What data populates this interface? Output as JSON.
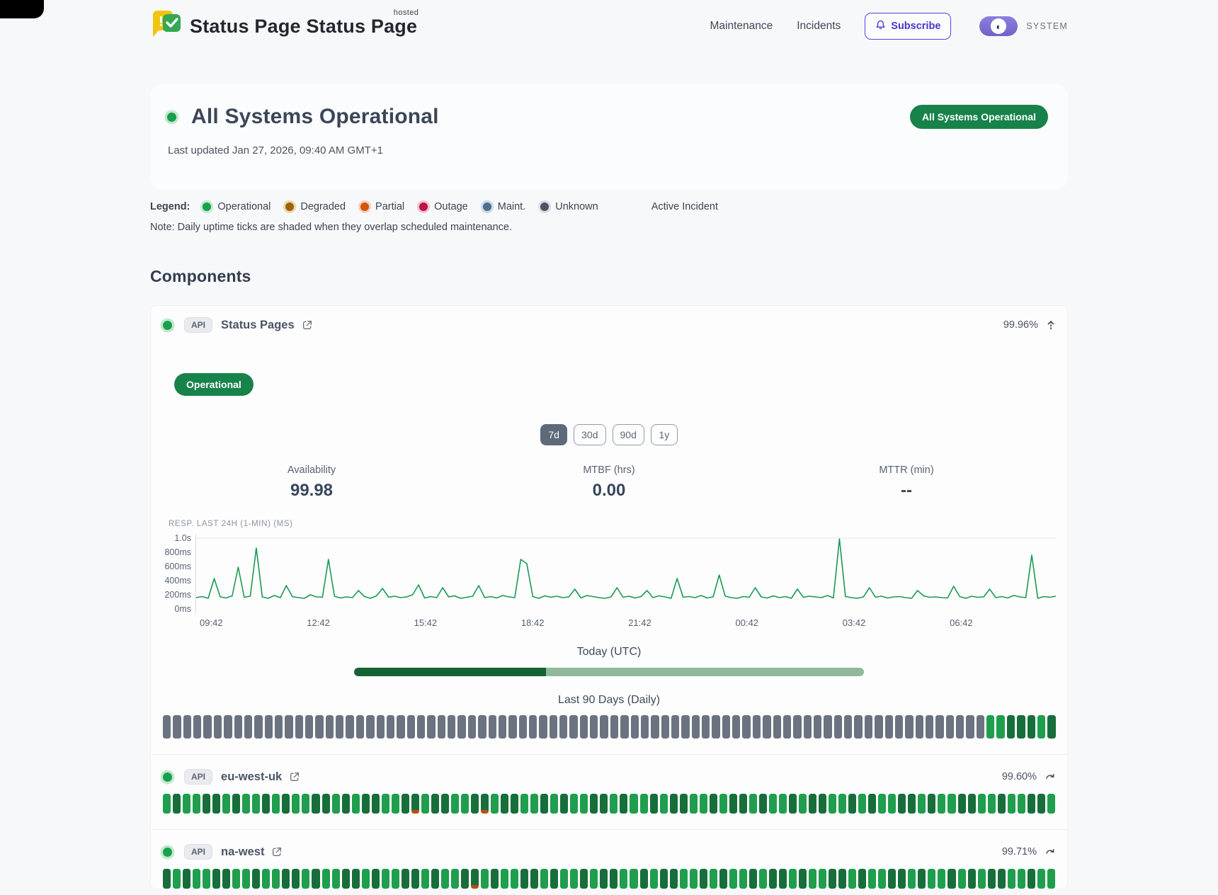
{
  "header": {
    "brand": {
      "name": "Status Page",
      "superscript": "hosted"
    },
    "nav": [
      {
        "label": "Maintenance"
      },
      {
        "label": "Incidents"
      }
    ],
    "subscribe_label": "Subscribe",
    "theme_label": "SYSTEM"
  },
  "hero": {
    "title": "All Systems Operational",
    "last_updated": "Last updated Jan 27, 2026, 09:40 AM GMT+1",
    "badge": "All Systems Operational"
  },
  "legend": {
    "label": "Legend:",
    "items": [
      {
        "label": "Operational",
        "color": "#18a04d",
        "ring": "#c3e7cf"
      },
      {
        "label": "Degraded",
        "color": "#a16207",
        "ring": "#ead9ab"
      },
      {
        "label": "Partial",
        "color": "#d35708",
        "ring": "#f3d0c4"
      },
      {
        "label": "Outage",
        "color": "#c01048",
        "ring": "#f2c3d2"
      },
      {
        "label": "Maint.",
        "color": "#4e6e8e",
        "ring": "#c9d9e8"
      },
      {
        "label": "Unknown",
        "color": "#4b5563",
        "ring": "#d9dce1"
      }
    ],
    "active_incident_label": "Active Incident",
    "note": "Note: Daily uptime ticks are shaded when they overlap scheduled maintenance."
  },
  "components_section": {
    "heading": "Components",
    "expanded": {
      "tag": "API",
      "name": "Status Pages",
      "uptime": "99.96%",
      "status_badge": "Operational",
      "ranges": [
        "7d",
        "30d",
        "90d",
        "1y"
      ],
      "selected_range": "7d",
      "stats": [
        {
          "label": "Availability",
          "value": "99.98"
        },
        {
          "label": "MTBF (hrs)",
          "value": "0.00"
        },
        {
          "label": "MTTR (min)",
          "value": "--"
        }
      ],
      "today_label": "Today (UTC)",
      "today_progress_pct": 37.6,
      "history_label": "Last 90 Days (Daily)",
      "history_ticks": "gggggggggggggggggggggggggggggggggggggggggggggggggggggggggggggggggggggggggggggggggGGDDDGD"
    },
    "collapsed": [
      {
        "tag": "API",
        "name": "eu-west-uk",
        "uptime": "99.60%",
        "ticks": "GDGGDDGDGGDGDGGDDGDGDDGGDpGDDGGDpGDDGGDGDGGDDGDGGDGDDGGDGDDGDGGDGDDGGDGDGGDDGDGGDDGGDGGDDG"
      },
      {
        "tag": "API",
        "name": "na-west",
        "uptime": "99.71%",
        "ticks": "DGDGGDDGGDGGDDGDGGDDGDGGDDGDGGDpGDGGDDGDGGDGDDGGDGDDGGDGDGGDGDDGDGGDDGDGGDDGDGGDGDGDDGGDGG"
      }
    ],
    "tick_colors": {
      "g": "#6b7280",
      "G": "#1f9e4d",
      "D": "#176e3b",
      "partial_bottom": "#b9500e"
    }
  },
  "chart_data": {
    "type": "line",
    "title": "RESP. LAST 24H (1-MIN) (MS)",
    "x_tick_labels": [
      "09:42",
      "12:42",
      "15:42",
      "18:42",
      "21:42",
      "00:42",
      "03:42",
      "06:42"
    ],
    "y_tick_labels": [
      "1.0s",
      "800ms",
      "600ms",
      "400ms",
      "200ms",
      "0ms"
    ],
    "ylim": [
      0,
      1000
    ],
    "grid": "minimal",
    "line_color": "#1b9a52",
    "values": [
      160,
      175,
      150,
      430,
      170,
      155,
      185,
      590,
      165,
      180,
      860,
      170,
      150,
      190,
      160,
      330,
      175,
      160,
      150,
      200,
      170,
      165,
      700,
      180,
      155,
      170,
      160,
      260,
      175,
      150,
      185,
      290,
      165,
      180,
      160,
      170,
      200,
      340,
      155,
      175,
      160,
      300,
      170,
      185,
      150,
      165,
      180,
      330,
      160,
      175,
      155,
      190,
      170,
      160,
      700,
      640,
      175,
      150,
      185,
      165,
      180,
      160,
      170,
      280,
      155,
      190,
      175,
      160,
      150,
      170,
      300,
      165,
      180,
      155,
      175,
      260,
      160,
      185,
      170,
      150,
      430,
      165,
      175,
      160,
      190,
      155,
      170,
      480,
      180,
      160,
      150,
      175,
      165,
      300,
      170,
      155,
      185,
      160,
      175,
      150,
      280,
      165,
      180,
      170,
      160,
      190,
      155,
      990,
      175,
      160,
      150,
      170,
      300,
      165,
      180,
      155,
      170,
      175,
      160,
      150,
      260,
      185,
      165,
      170,
      160,
      155,
      320,
      175,
      150,
      180,
      165,
      170,
      280,
      160,
      175,
      155,
      190,
      170,
      160,
      760,
      150,
      175,
      165,
      180
    ]
  }
}
